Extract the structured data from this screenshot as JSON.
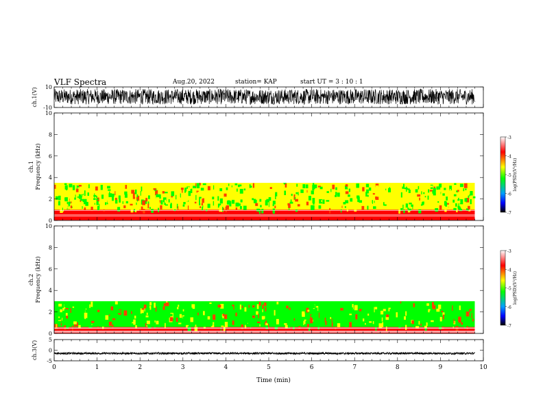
{
  "header": {
    "title": "VLF Spectra",
    "date": "Aug.20, 2022",
    "station": "station= KAP",
    "start": "start  UT =   3 : 10 : 1"
  },
  "colors": {
    "colormap": [
      "#000000",
      "#0000ff",
      "#00a0ff",
      "#00ff00",
      "#ffff00",
      "#ff0000",
      "#ffffff"
    ],
    "waveform": "#000000"
  },
  "chart_data": [
    {
      "type": "line",
      "name": "ch1-waveform",
      "ylabel": "ch.1(V)",
      "ylim": [
        -10,
        10
      ],
      "yticks": [
        10,
        -10
      ],
      "xlim": [
        0,
        10
      ],
      "description_of_values": "dense noise oscillating roughly between -7 and 8 V for the whole interval"
    },
    {
      "type": "heatmap",
      "name": "ch1-spectrogram",
      "ylabel": "ch.1\nFrequency  (kHz)",
      "ylim": [
        0,
        10
      ],
      "yticks": [
        0,
        2,
        4,
        6,
        8,
        10
      ],
      "xlim": [
        0,
        10
      ],
      "data_end_min": 9.8,
      "color_scale": {
        "label": "log(PSD)(V²/Hz)",
        "range": [
          -7,
          -3
        ],
        "ticks": [
          -3,
          -4,
          -5,
          -6,
          -7
        ]
      },
      "bands": [
        {
          "f_low": 0.0,
          "f_high": 1.0,
          "level": -3.6
        },
        {
          "f_low": 1.0,
          "f_high": 3.5,
          "level": -4.5
        },
        {
          "f_low": 3.5,
          "f_high": 10.0,
          "level": -3.2
        }
      ]
    },
    {
      "type": "heatmap",
      "name": "ch2-spectrogram",
      "ylabel": "ch.2\nFrequency  (kHz)",
      "ylim": [
        0,
        10
      ],
      "yticks": [
        0,
        2,
        4,
        6,
        8,
        10
      ],
      "xlim": [
        0,
        10
      ],
      "data_end_min": 9.8,
      "color_scale": {
        "label": "log(PSD)(V²/Hz)",
        "range": [
          -7,
          -3
        ],
        "ticks": [
          -3,
          -4,
          -5,
          -6,
          -7
        ]
      },
      "bands": [
        {
          "f_low": 0.0,
          "f_high": 0.6,
          "level": -3.7
        },
        {
          "f_low": 0.6,
          "f_high": 3.0,
          "level": -4.7
        },
        {
          "f_low": 3.0,
          "f_high": 10.0,
          "level": -3.3
        }
      ]
    },
    {
      "type": "line",
      "name": "ch3-waveform",
      "ylabel": "ch.3(V)",
      "ylim": [
        -5,
        5
      ],
      "yticks": [
        5,
        0,
        -5
      ],
      "xlim": [
        0,
        10
      ],
      "xlabel": "Time  (min)",
      "xticks": [
        0,
        1,
        2,
        3,
        4,
        5,
        6,
        7,
        8,
        9,
        10
      ],
      "description_of_values": "thin dense band near -1 to -2 V across the record"
    }
  ]
}
